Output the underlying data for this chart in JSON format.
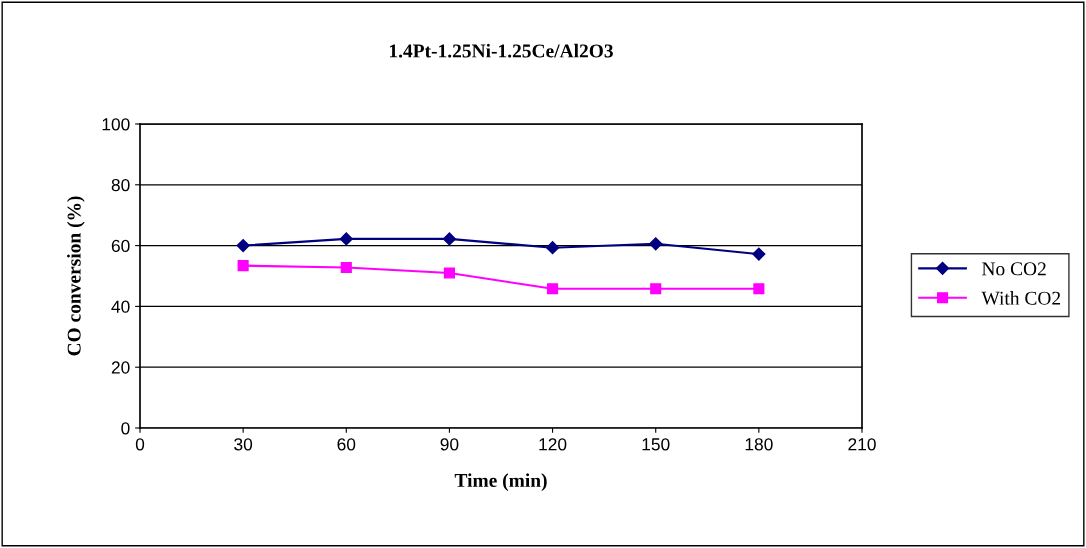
{
  "chart_data": {
    "type": "line",
    "title": "1.4Pt-1.25Ni-1.25Ce/Al2O3",
    "xlabel": "Time (min)",
    "ylabel": "CO conversion (%)",
    "x": [
      30,
      60,
      90,
      120,
      150,
      180
    ],
    "series": [
      {
        "name": "No CO2",
        "color": "#000080",
        "marker": "diamond",
        "values": [
          60.0,
          62.2,
          62.2,
          59.3,
          60.6,
          57.2
        ]
      },
      {
        "name": "With CO2",
        "color": "#ff00ff",
        "marker": "square",
        "values": [
          53.4,
          52.8,
          51.0,
          45.8,
          45.8,
          45.8
        ]
      }
    ],
    "xlim": [
      0,
      210
    ],
    "xticks": [
      0,
      30,
      60,
      90,
      120,
      150,
      180,
      210
    ],
    "ylim": [
      0,
      100
    ],
    "yticks": [
      0,
      20,
      40,
      60,
      80,
      100
    ],
    "grid": "y",
    "legend": "right",
    "line_style": "solid"
  }
}
